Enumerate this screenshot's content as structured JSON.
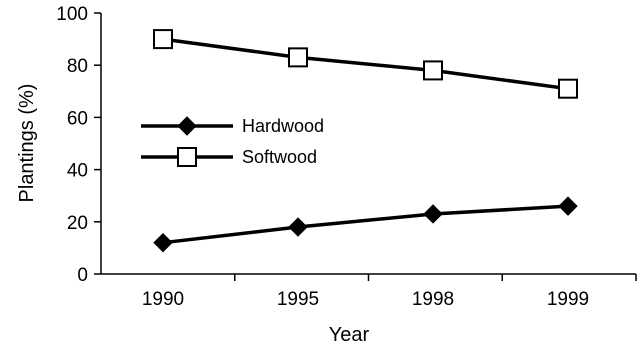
{
  "chart_data": {
    "type": "line",
    "categories": [
      "1990",
      "1995",
      "1998",
      "1999"
    ],
    "series": [
      {
        "name": "Hardwood",
        "values": [
          12,
          18,
          23,
          26
        ],
        "marker": "diamond-filled",
        "color": "#000000"
      },
      {
        "name": "Softwood",
        "values": [
          90,
          83,
          78,
          71
        ],
        "marker": "square-open",
        "color": "#000000"
      }
    ],
    "xlabel": "Year",
    "ylabel": "Plantings (%)",
    "ylim": [
      0,
      100
    ],
    "yticks": [
      "0",
      "20",
      "40",
      "60",
      "80",
      "100"
    ],
    "grid": false,
    "legend_position": "left"
  }
}
